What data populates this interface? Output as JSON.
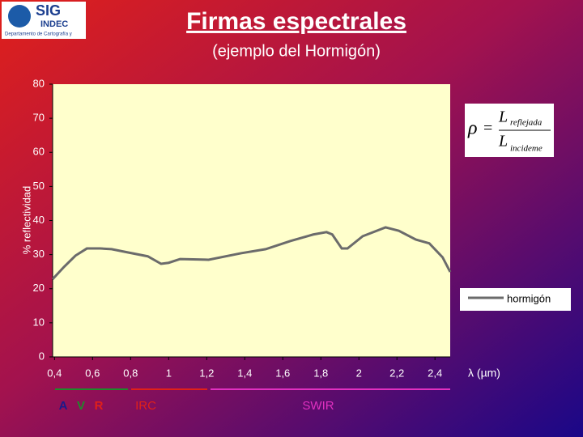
{
  "header": {
    "logo": [
      "SIG",
      "INDEC",
      "Departamento de Cartografía y"
    ],
    "title": "Firmas espectrales",
    "subtitle": "(ejemplo del Hormigón)"
  },
  "formula": {
    "rho": "ρ",
    "equals": "=",
    "num": "L",
    "num_sub": "reflejada",
    "den": "L",
    "den_sub": "incideme"
  },
  "bands": [
    "A",
    "V",
    "R",
    "IRC",
    "SWIR"
  ],
  "chart_data": {
    "type": "line",
    "y_label": "% reflectividad",
    "x_label": "λ (µm)",
    "x": [
      0.39,
      0.45,
      0.51,
      0.57,
      0.64,
      0.7,
      0.79,
      0.89,
      0.96,
      1.0,
      1.06,
      1.21,
      1.38,
      1.51,
      1.64,
      1.76,
      1.83,
      1.86,
      1.91,
      1.94,
      2.02,
      2.14,
      2.21,
      2.3,
      2.37,
      2.44,
      2.48
    ],
    "series": [
      {
        "name": "hormigón",
        "color": "#6b6b6b",
        "values": [
          22.8,
          26.4,
          29.7,
          31.8,
          31.8,
          31.6,
          30.6,
          29.5,
          27.3,
          27.6,
          28.7,
          28.5,
          30.4,
          31.6,
          34,
          35.9,
          36.6,
          35.9,
          31.8,
          31.8,
          35.4,
          38,
          37,
          34.4,
          33.3,
          29.2,
          24.9
        ]
      }
    ],
    "xlim": [
      0.39,
      2.48
    ],
    "ylim": [
      0,
      80
    ],
    "xticks": [
      {
        "value": 0.4,
        "label": "0,4"
      },
      {
        "value": 0.6,
        "label": "0,6"
      },
      {
        "value": 0.8,
        "label": "0,8"
      },
      1,
      {
        "value": 1.2,
        "label": "1,2"
      },
      {
        "value": 1.4,
        "label": "1,4"
      },
      {
        "value": 1.6,
        "label": "1,6"
      },
      {
        "value": 1.8,
        "label": "1,8"
      },
      2,
      {
        "value": 2.2,
        "label": "2,2"
      },
      {
        "value": 2.4,
        "label": "2,4"
      }
    ],
    "yticks": [
      0,
      10,
      20,
      30,
      40,
      50,
      60,
      70,
      80
    ],
    "grid": false,
    "legend": "right"
  }
}
